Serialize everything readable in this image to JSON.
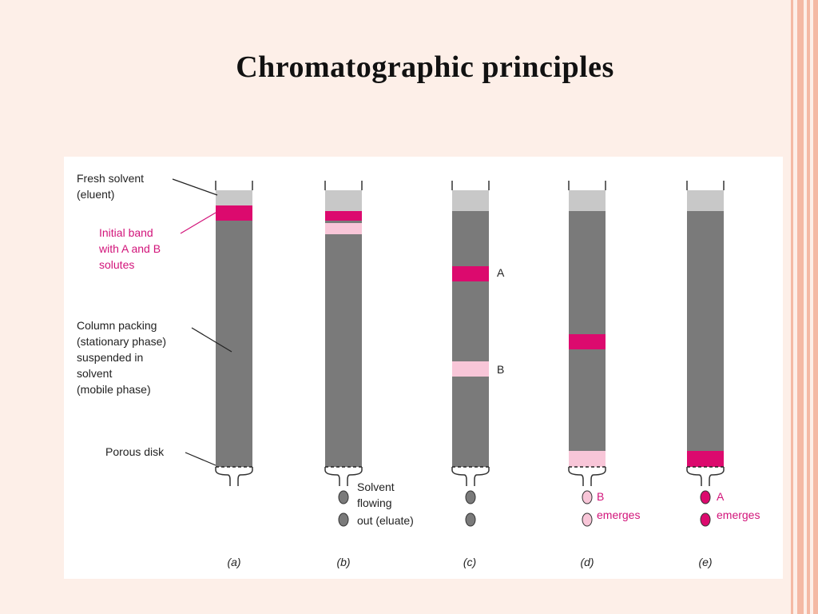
{
  "slide": {
    "title": "Chromatographic principles"
  },
  "colors": {
    "background": "#fdefe8",
    "accent": "#f4b9a4",
    "column_packing": "#7a7a7a",
    "solvent": "#c8c8c8",
    "solute_a": "#dc0a6e",
    "solute_b": "#f8c6d8",
    "label_magenta": "#d2147a"
  },
  "diagram": {
    "labels": {
      "fresh_solvent": [
        "Fresh solvent",
        "(eluent)"
      ],
      "initial_band": [
        "Initial band",
        "with A and B",
        "solutes"
      ],
      "column_packing": [
        "Column packing",
        "(stationary phase)",
        "suspended in",
        "solvent",
        "(mobile phase)"
      ],
      "porous_disk": "Porous disk",
      "solvent_flowing": [
        "Solvent",
        "flowing",
        "out (eluate)"
      ],
      "band_a": "A",
      "band_b": "B",
      "b_emerges": [
        "B",
        "emerges"
      ],
      "a_emerges": [
        "A",
        "emerges"
      ]
    },
    "panels": [
      "(a)",
      "(b)",
      "(c)",
      "(d)",
      "(e)"
    ]
  }
}
